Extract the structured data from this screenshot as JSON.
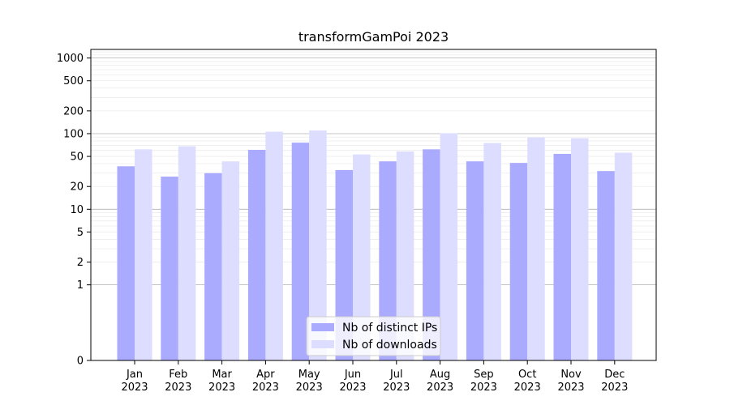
{
  "chart_data": {
    "type": "bar",
    "title": "transformGamPoi 2023",
    "xlabel": "",
    "ylabel": "",
    "scale": "symlog",
    "ylim": [
      0,
      1300
    ],
    "yticks": [
      0,
      1,
      2,
      5,
      10,
      20,
      50,
      100,
      200,
      500,
      1000
    ],
    "ytick_labels": [
      "0",
      "1",
      "2",
      "5",
      "10",
      "20",
      "50",
      "100",
      "200",
      "500",
      "1000"
    ],
    "categories": [
      "Jan\n2023",
      "Feb\n2023",
      "Mar\n2023",
      "Apr\n2023",
      "May\n2023",
      "Jun\n2023",
      "Jul\n2023",
      "Aug\n2023",
      "Sep\n2023",
      "Oct\n2023",
      "Nov\n2023",
      "Dec\n2023"
    ],
    "series": [
      {
        "name": "Nb of distinct IPs",
        "color": "#aaaaff",
        "values": [
          37,
          27,
          30,
          61,
          76,
          33,
          43,
          62,
          43,
          41,
          54,
          32
        ]
      },
      {
        "name": "Nb of downloads",
        "color": "#ddddff",
        "values": [
          62,
          68,
          43,
          106,
          110,
          53,
          58,
          101,
          75,
          89,
          87,
          56
        ]
      }
    ],
    "legend_position": "lower-center",
    "grid": "horizontal"
  }
}
